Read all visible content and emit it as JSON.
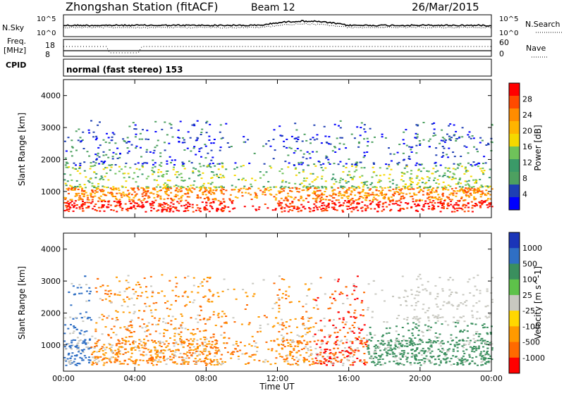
{
  "header": {
    "station": "Zhongshan Station (fitACF)",
    "beam": "Beam 12",
    "date": "26/Mar/2015"
  },
  "top_panels": {
    "nsky_label": "N.Sky",
    "nsky_ticks": [
      "10^5",
      "10^0"
    ],
    "nsearch_label": "N.Search",
    "nsearch_ticks": [
      "10^5",
      "10^0"
    ],
    "freq_label": "Freq.",
    "freq_unit": "[MHz]",
    "freq_ticks": [
      "18",
      "8"
    ],
    "nave_label": "Nave",
    "nave_ticks": [
      "60",
      "0"
    ],
    "cpid_label": "CPID",
    "cpid_text": "normal (fast stereo) 153"
  },
  "chart_data": [
    {
      "type": "heatmap",
      "name": "power",
      "ylabel": "Slant Range [km]",
      "yticks": [
        "4000",
        "3000",
        "2000",
        "1000"
      ],
      "ylim": [
        180,
        4500
      ],
      "xlim_hours": [
        0,
        24
      ],
      "colorbar": {
        "label": "Power [dB]",
        "ticks": [
          "28",
          "24",
          "20",
          "16",
          "12",
          "8",
          "4"
        ],
        "colors": [
          "#ff0000",
          "#ff4a00",
          "#ff8c00",
          "#ffb400",
          "#f5d800",
          "#6fc25a",
          "#3a9a68",
          "#4da060",
          "#1e3fb4",
          "#0000ff"
        ]
      }
    },
    {
      "type": "heatmap",
      "name": "velocity",
      "ylabel": "Slant Range [km]",
      "yticks": [
        "4000",
        "3000",
        "2000",
        "1000"
      ],
      "ylim": [
        180,
        4500
      ],
      "xlim_hours": [
        0,
        24
      ],
      "colorbar": {
        "label": "Velocity [m s^-1]",
        "ticks": [
          "1000",
          "500",
          "100",
          "25",
          "-25",
          "-100",
          "-500",
          "-1000"
        ],
        "colors": [
          "#1a35b8",
          "#2f6fc4",
          "#3a8f5e",
          "#5ec24a",
          "#c8c8c0",
          "#ffd700",
          "#ff9a00",
          "#ff6a00",
          "#ff0000"
        ]
      }
    }
  ],
  "xaxis": {
    "ticks": [
      "00:00",
      "04:00",
      "08:00",
      "12:00",
      "16:00",
      "20:00",
      "00:00"
    ],
    "label": "Time UT"
  }
}
